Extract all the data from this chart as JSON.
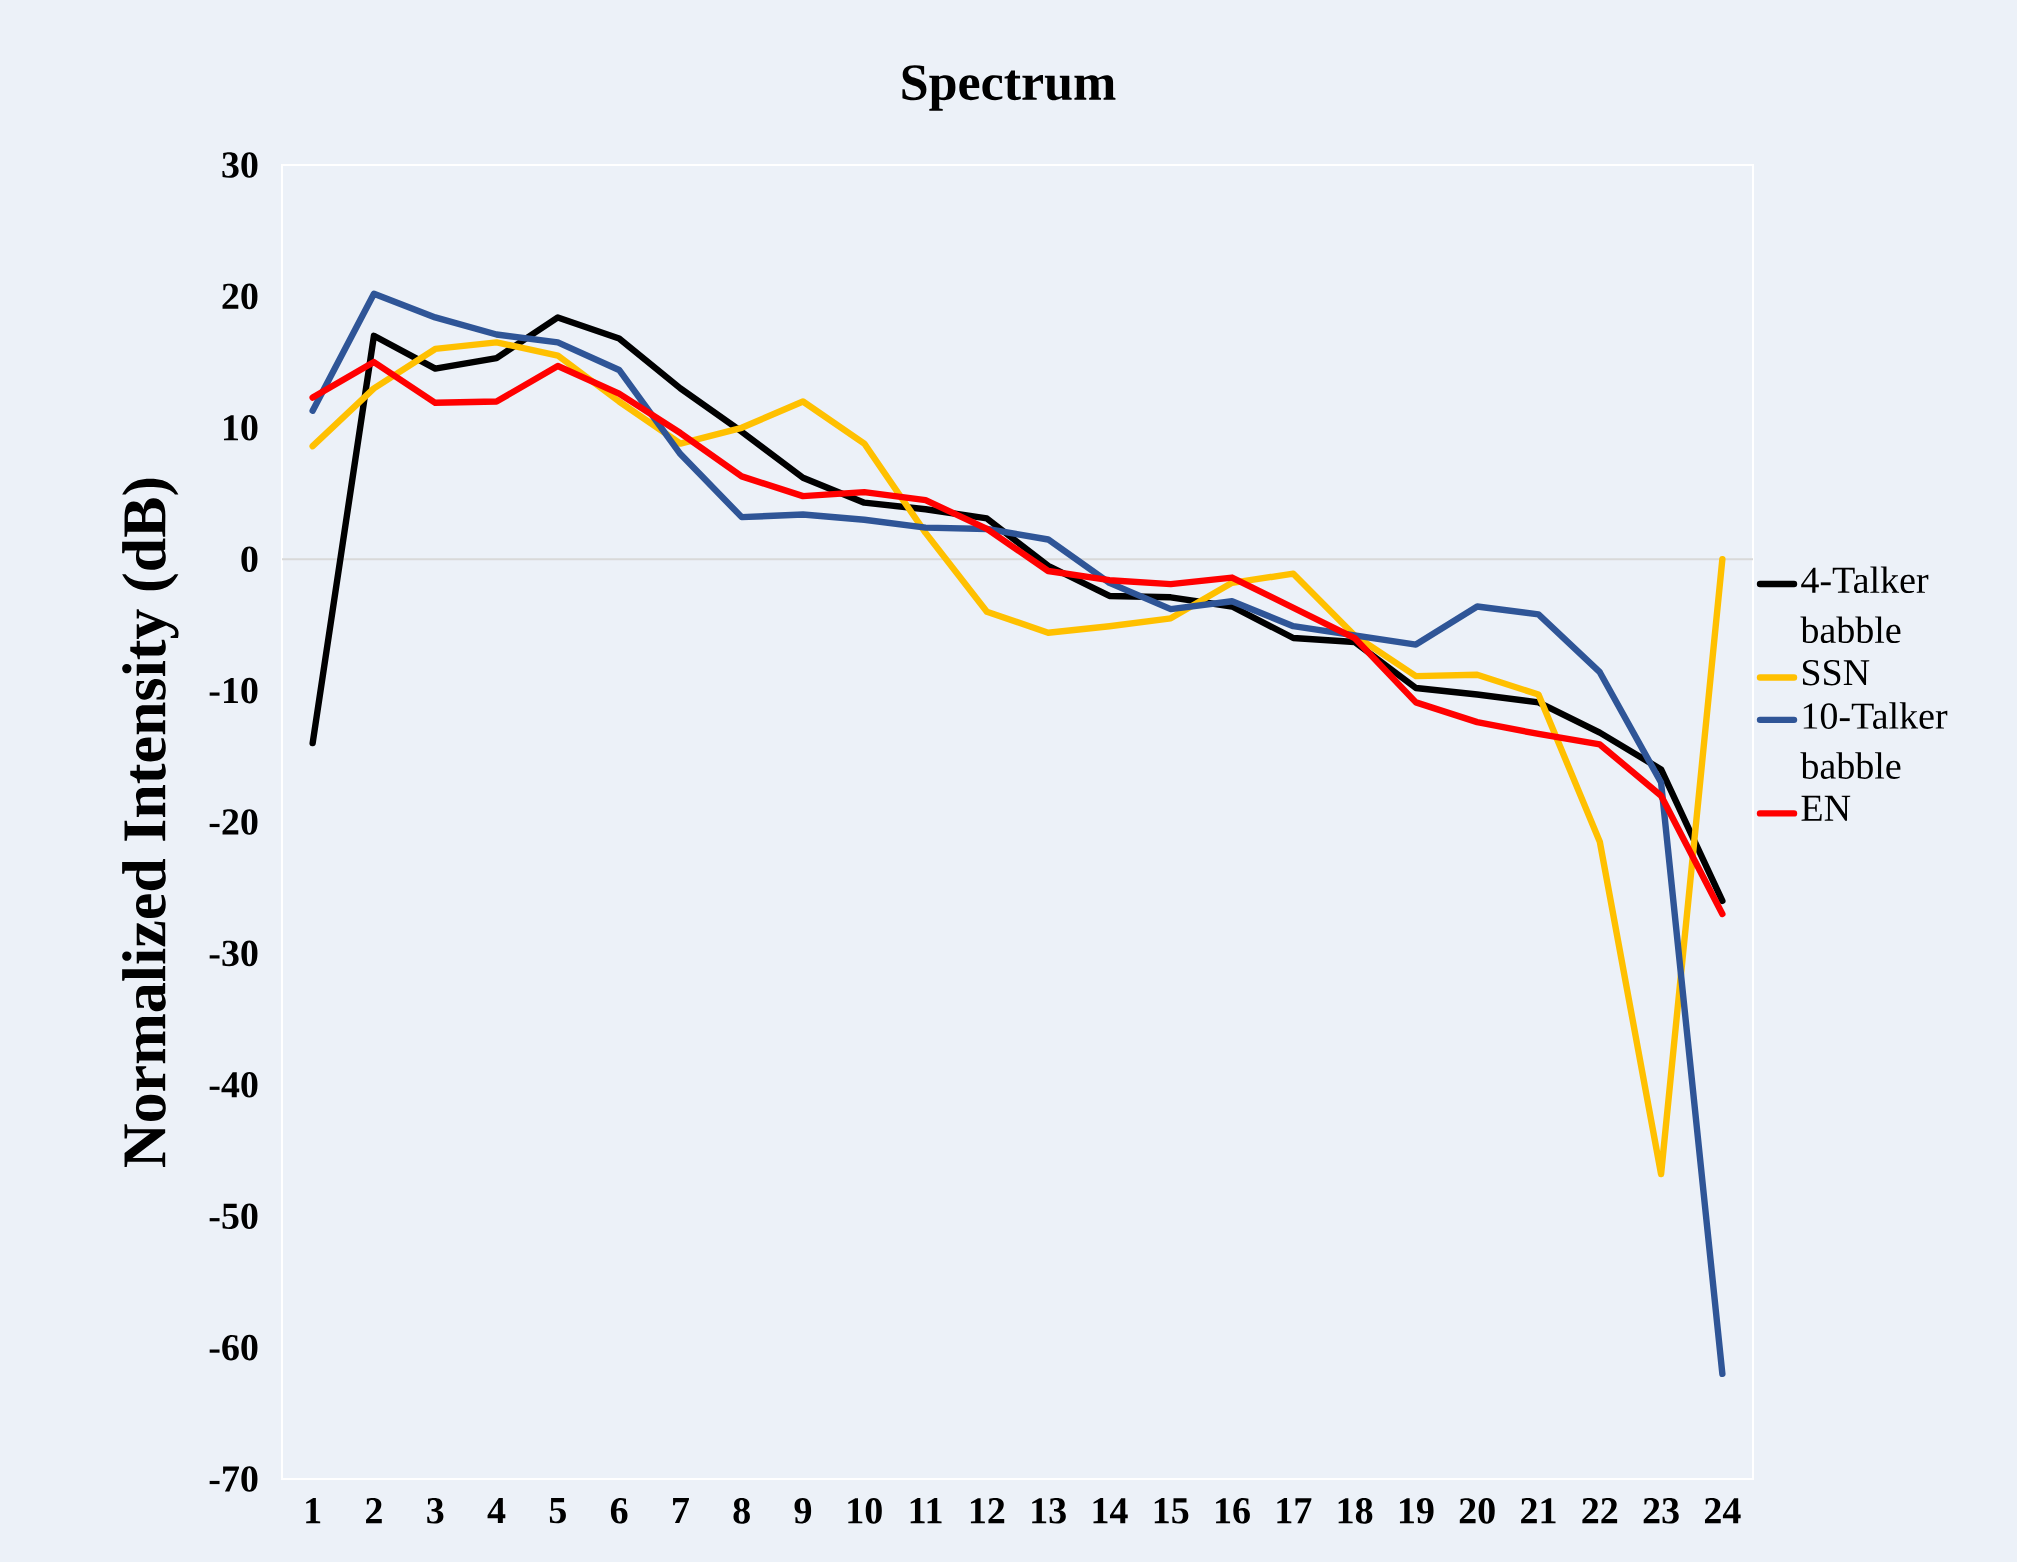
{
  "chart_data": {
    "type": "line",
    "title": "Spectrum",
    "ylabel": "Normalized Intensity (dB)",
    "categories": [
      "1",
      "2",
      "3",
      "4",
      "5",
      "6",
      "7",
      "8",
      "9",
      "10",
      "11",
      "12",
      "13",
      "14",
      "15",
      "16",
      "17",
      "18",
      "19",
      "20",
      "21",
      "22",
      "23",
      "24"
    ],
    "series": [
      {
        "name": "4-Talker babble",
        "color": "#000000",
        "values": [
          -14,
          17,
          14.5,
          15.3,
          18.4,
          16.8,
          13,
          9.7,
          6.2,
          4.3,
          3.8,
          3.1,
          -0.5,
          -2.8,
          -2.9,
          -3.6,
          -6,
          -6.3,
          -9.8,
          -10.3,
          -10.9,
          -13.2,
          -16,
          -26
        ]
      },
      {
        "name": "SSN",
        "color": "#ffc000",
        "values": [
          8.6,
          13,
          16,
          16.5,
          15.5,
          12,
          8.8,
          10,
          12,
          8.8,
          2,
          -4,
          -5.6,
          -5.1,
          -4.5,
          -1.8,
          -1.1,
          -5.8,
          -8.9,
          -8.8,
          -10.3,
          -21.5,
          -46.8,
          0
        ]
      },
      {
        "name": "10-Talker babble",
        "color": "#2f5597",
        "values": [
          11.3,
          20.2,
          18.4,
          17.1,
          16.5,
          14.4,
          8,
          3.2,
          3.4,
          3,
          2.4,
          2.3,
          1.5,
          -1.8,
          -3.8,
          -3.2,
          -5.1,
          -5.8,
          -6.5,
          -3.6,
          -4.2,
          -8.6,
          -17,
          -62
        ]
      },
      {
        "name": "EN",
        "color": "#ff0000",
        "values": [
          12.3,
          15,
          11.9,
          12,
          14.7,
          12.6,
          9.6,
          6.3,
          4.8,
          5.1,
          4.5,
          2.3,
          -0.9,
          -1.6,
          -1.9,
          -1.4,
          -3.7,
          -6,
          -10.9,
          -12.4,
          -13.3,
          -14.1,
          -18,
          -27
        ]
      }
    ],
    "ylim": [
      -70,
      30
    ],
    "yticks": [
      -70,
      -60,
      -50,
      -40,
      -30,
      -20,
      -10,
      0,
      10,
      20,
      30
    ],
    "ref_lines": [
      {
        "axis": "y",
        "value": 0,
        "color": "#d9d9d9"
      }
    ],
    "legend": "right",
    "grid": false,
    "marker": "none",
    "line_style": "solid"
  }
}
